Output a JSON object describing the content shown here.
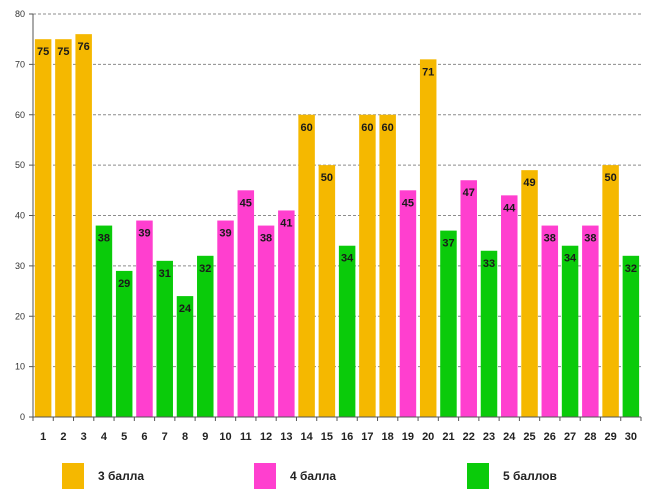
{
  "chart_data": {
    "type": "bar",
    "title": "",
    "xlabel": "",
    "ylabel": "",
    "ylim": [
      0,
      80
    ],
    "yticks": [
      0,
      10,
      20,
      30,
      40,
      50,
      60,
      70,
      80
    ],
    "grid": true,
    "categories": [
      "1",
      "2",
      "3",
      "4",
      "5",
      "6",
      "7",
      "8",
      "9",
      "10",
      "11",
      "12",
      "13",
      "14",
      "15",
      "16",
      "17",
      "18",
      "19",
      "20",
      "21",
      "22",
      "23",
      "24",
      "25",
      "26",
      "27",
      "28",
      "29",
      "30"
    ],
    "values": [
      75,
      75,
      76,
      38,
      29,
      39,
      31,
      24,
      32,
      39,
      45,
      38,
      41,
      60,
      50,
      34,
      60,
      60,
      45,
      71,
      37,
      47,
      33,
      44,
      49,
      38,
      34,
      38,
      50,
      32
    ],
    "groups": [
      "3",
      "3",
      "3",
      "5",
      "5",
      "4",
      "5",
      "5",
      "5",
      "4",
      "4",
      "4",
      "4",
      "3",
      "3",
      "5",
      "3",
      "3",
      "4",
      "3",
      "5",
      "4",
      "5",
      "4",
      "3",
      "4",
      "5",
      "4",
      "3",
      "5"
    ],
    "series_colors": {
      "3": "#F5B800",
      "4": "#FF3FCF",
      "5": "#0ACB0A"
    },
    "legend_position": "bottom",
    "legend": [
      {
        "key": "3",
        "label": "3 балла",
        "color": "#F5B800"
      },
      {
        "key": "4",
        "label": "4 балла",
        "color": "#FF3FCF"
      },
      {
        "key": "5",
        "label": "5 баллов",
        "color": "#0ACB0A"
      }
    ]
  }
}
